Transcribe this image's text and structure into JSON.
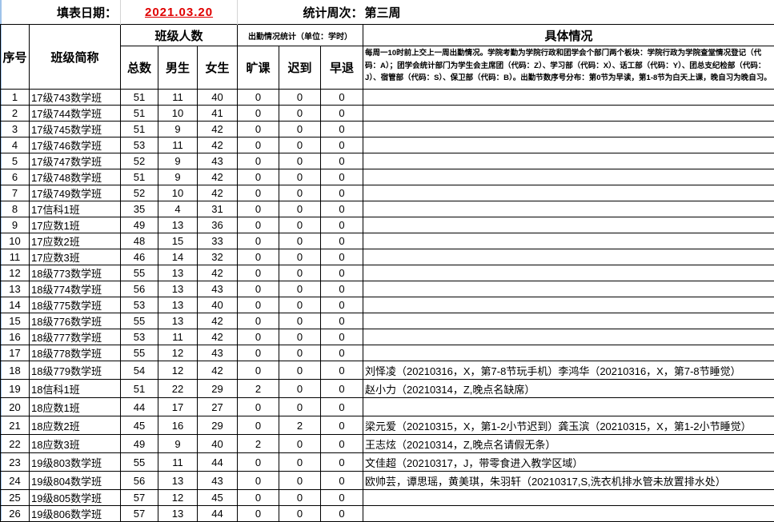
{
  "header": {
    "fill_date_label": "填表日期：",
    "fill_date": "2021.03.20",
    "week_label": "统计周次：",
    "week_value": "第三周"
  },
  "columns": {
    "index": "序号",
    "class_name": "班级简称",
    "class_size_group": "班级人数",
    "total": "总数",
    "male": "男生",
    "female": "女生",
    "attendance_group": "出勤情况统计（单位：学时）",
    "absent": "旷课",
    "late": "迟到",
    "early_leave": "早退",
    "details": "具体情况"
  },
  "notes": "每周一10时前上交上一周出勤情况。学院考勤为学院行政和团学会个部门两个板块：学院行政为学院查堂情况登记（代码：A）；团学会统计部门为学生会主席团（代码：Z）、学习部（代码：X）、话工部（代码：Y）、团总支纪检部（代码：J）、宿管部（代码：S）、保卫部（代码：B）。出勤节数序号分布：第0节为早读，第1-8节为白天上课，晚自习为晚自习。",
  "rows": [
    {
      "no": "1",
      "name": "17级743数学班",
      "total": "51",
      "male": "11",
      "female": "40",
      "absent": "0",
      "late": "0",
      "early": "0",
      "detail": ""
    },
    {
      "no": "2",
      "name": "17级744数学班",
      "total": "51",
      "male": "10",
      "female": "41",
      "absent": "0",
      "late": "0",
      "early": "0",
      "detail": ""
    },
    {
      "no": "3",
      "name": "17级745数学班",
      "total": "51",
      "male": "9",
      "female": "42",
      "absent": "0",
      "late": "0",
      "early": "0",
      "detail": ""
    },
    {
      "no": "4",
      "name": "17级746数学班",
      "total": "53",
      "male": "11",
      "female": "42",
      "absent": "0",
      "late": "0",
      "early": "0",
      "detail": ""
    },
    {
      "no": "5",
      "name": "17级747数学班",
      "total": "52",
      "male": "9",
      "female": "43",
      "absent": "0",
      "late": "0",
      "early": "0",
      "detail": ""
    },
    {
      "no": "6",
      "name": "17级748数学班",
      "total": "51",
      "male": "9",
      "female": "42",
      "absent": "0",
      "late": "0",
      "early": "0",
      "detail": ""
    },
    {
      "no": "7",
      "name": "17级749数学班",
      "total": "52",
      "male": "10",
      "female": "42",
      "absent": "0",
      "late": "0",
      "early": "0",
      "detail": ""
    },
    {
      "no": "8",
      "name": "17信科1班",
      "total": "35",
      "male": "4",
      "female": "31",
      "absent": "0",
      "late": "0",
      "early": "0",
      "detail": ""
    },
    {
      "no": "9",
      "name": "17应数1班",
      "total": "49",
      "male": "13",
      "female": "36",
      "absent": "0",
      "late": "0",
      "early": "0",
      "detail": ""
    },
    {
      "no": "10",
      "name": "17应数2班",
      "total": "48",
      "male": "15",
      "female": "33",
      "absent": "0",
      "late": "0",
      "early": "0",
      "detail": ""
    },
    {
      "no": "11",
      "name": "17应数3班",
      "total": "46",
      "male": "14",
      "female": "32",
      "absent": "0",
      "late": "0",
      "early": "0",
      "detail": ""
    },
    {
      "no": "12",
      "name": "18级773数学班",
      "total": "55",
      "male": "13",
      "female": "42",
      "absent": "0",
      "late": "0",
      "early": "0",
      "detail": ""
    },
    {
      "no": "13",
      "name": "18级774数学班",
      "total": "56",
      "male": "13",
      "female": "43",
      "absent": "0",
      "late": "0",
      "early": "0",
      "detail": ""
    },
    {
      "no": "14",
      "name": "18级775数学班",
      "total": "53",
      "male": "13",
      "female": "40",
      "absent": "0",
      "late": "0",
      "early": "0",
      "detail": ""
    },
    {
      "no": "15",
      "name": "18级776数学班",
      "total": "55",
      "male": "13",
      "female": "42",
      "absent": "0",
      "late": "0",
      "early": "0",
      "detail": ""
    },
    {
      "no": "16",
      "name": "18级777数学班",
      "total": "53",
      "male": "11",
      "female": "42",
      "absent": "0",
      "late": "0",
      "early": "0",
      "detail": ""
    },
    {
      "no": "17",
      "name": "18级778数学班",
      "total": "55",
      "male": "12",
      "female": "43",
      "absent": "0",
      "late": "0",
      "early": "0",
      "detail": ""
    },
    {
      "no": "18",
      "name": "18级779数学班",
      "total": "54",
      "male": "12",
      "female": "42",
      "absent": "0",
      "late": "0",
      "early": "0",
      "detail": "刘怿凌（20210316，X，第7-8节玩手机）李鸿华（20210316，X，第7-8节睡觉）"
    },
    {
      "no": "19",
      "name": "18信科1班",
      "total": "51",
      "male": "22",
      "female": "29",
      "absent": "2",
      "late": "0",
      "early": "0",
      "detail": "赵小力（20210314，Z,晚点名缺席）"
    },
    {
      "no": "20",
      "name": "18应数1班",
      "total": "44",
      "male": "17",
      "female": "27",
      "absent": "0",
      "late": "0",
      "early": "0",
      "detail": ""
    },
    {
      "no": "21",
      "name": "18应数2班",
      "total": "45",
      "male": "16",
      "female": "29",
      "absent": "0",
      "late": "2",
      "early": "0",
      "detail": "梁元爱（20210315，X，第1-2小节迟到）龚玉滨（20210315，X，第1-2小节睡觉）"
    },
    {
      "no": "22",
      "name": "18应数3班",
      "total": "49",
      "male": "9",
      "female": "40",
      "absent": "2",
      "late": "0",
      "early": "0",
      "detail": "王志炫（20210314，Z,晚点名请假无条）"
    },
    {
      "no": "23",
      "name": "19级803数学班",
      "total": "55",
      "male": "11",
      "female": "44",
      "absent": "0",
      "late": "0",
      "early": "0",
      "detail": "文佳超（20210317，J，带零食进入教学区域）"
    },
    {
      "no": "24",
      "name": "19级804数学班",
      "total": "56",
      "male": "13",
      "female": "43",
      "absent": "0",
      "late": "0",
      "early": "0",
      "detail": "欧帅芸，谭思瑶，黄美琪，朱羽轩（20210317,S,洗衣机排水管未放置排水处）"
    },
    {
      "no": "25",
      "name": "19级805数学班",
      "total": "57",
      "male": "12",
      "female": "45",
      "absent": "0",
      "late": "0",
      "early": "0",
      "detail": ""
    },
    {
      "no": "26",
      "name": "19级806数学班",
      "total": "57",
      "male": "13",
      "female": "44",
      "absent": "0",
      "late": "0",
      "early": "0",
      "detail": ""
    }
  ]
}
